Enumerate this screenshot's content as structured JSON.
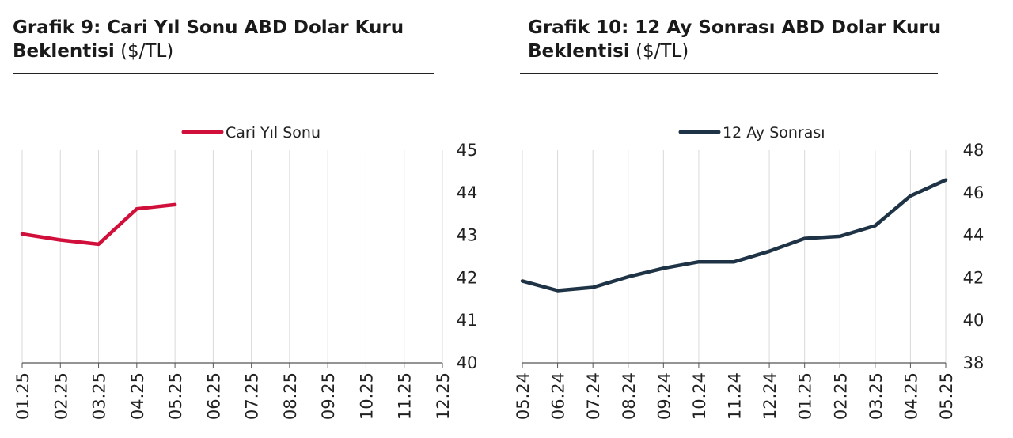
{
  "panels": [
    {
      "title_bold": "Grafik 9: Cari Yıl Sonu ABD Dolar Kuru",
      "title_bold_line2": "Beklentisi",
      "title_unit": "($/TL)"
    },
    {
      "title_bold": "Grafik 10: 12 Ay Sonrası ABD Dolar Kuru",
      "title_bold_line2": "Beklentisi",
      "title_unit": "($/TL)"
    }
  ],
  "chart_data": [
    {
      "type": "line",
      "title": "Grafik 9: Cari Yıl Sonu ABD Dolar Kuru Beklentisi ($/TL)",
      "categories": [
        "01.25",
        "02.25",
        "03.25",
        "04.25",
        "05.25",
        "06.25",
        "07.25",
        "08.25",
        "09.25",
        "10.25",
        "11.25",
        "12.25"
      ],
      "series": [
        {
          "name": "Cari Yıl Sonu",
          "color": "#d0103a",
          "values": [
            43.03,
            42.89,
            42.79,
            43.62,
            43.72,
            null,
            null,
            null,
            null,
            null,
            null,
            null
          ]
        }
      ],
      "ylim": [
        40,
        45
      ],
      "yticks": [
        "40",
        "41",
        "42",
        "43",
        "44",
        "45"
      ],
      "y_axis_side": "right",
      "grid": "vertical",
      "legend": "top-center"
    },
    {
      "type": "line",
      "title": "Grafik 10: 12 Ay Sonrası ABD Dolar Kuru Beklentisi ($/TL)",
      "categories": [
        "05.24",
        "06.24",
        "07.24",
        "08.24",
        "09.24",
        "10.24",
        "11.24",
        "12.24",
        "01.25",
        "02.25",
        "03.25",
        "04.25",
        "05.25"
      ],
      "series": [
        {
          "name": "12 Ay Sonrası",
          "color": "#1f3346",
          "values": [
            41.85,
            41.4,
            41.55,
            42.05,
            42.45,
            42.75,
            42.75,
            43.25,
            43.85,
            43.95,
            44.45,
            45.85,
            46.6
          ]
        }
      ],
      "ylim": [
        38,
        48
      ],
      "yticks": [
        "38",
        "40",
        "42",
        "44",
        "46",
        "48"
      ],
      "y_axis_side": "right",
      "grid": "vertical",
      "legend": "top-center"
    }
  ]
}
